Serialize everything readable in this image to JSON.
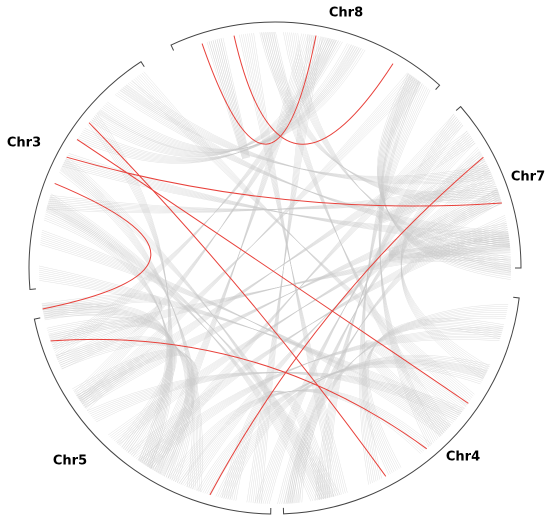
{
  "chromosomes": [
    {
      "label": "Chr8"
    },
    {
      "label": "Chr7"
    },
    {
      "label": "Chr4"
    },
    {
      "label": "Chr5"
    },
    {
      "label": "Chr3"
    }
  ]
}
